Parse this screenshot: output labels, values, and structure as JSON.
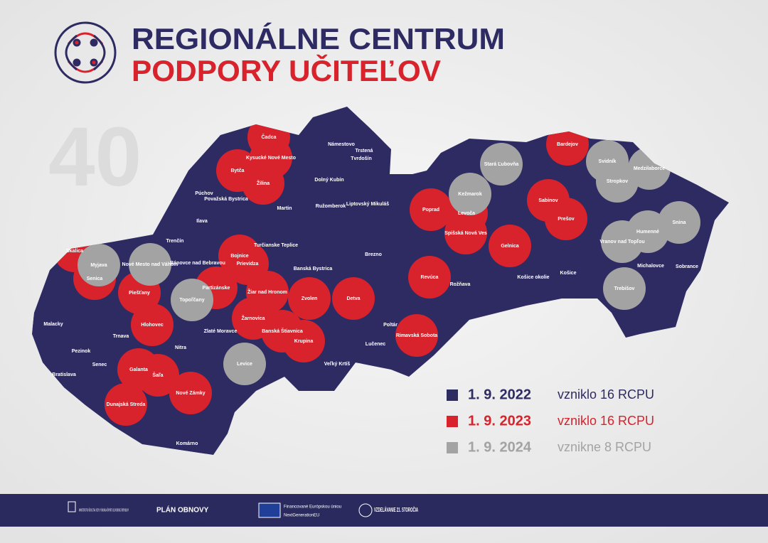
{
  "header": {
    "title_line1": "REGIONÁLNE CENTRUM",
    "title_line2": "PODPORY UČITEĽOV"
  },
  "count": "40",
  "legend": [
    {
      "date": "1. 9. 2022",
      "text": "vzniklo 16 RCPU",
      "color": "#2e2b63",
      "districts": [
        "Námestovo",
        "Trstená",
        "Tvrdošín",
        "Dolný Kubín",
        "Ružomberok",
        "Liptovský Mikuláš",
        "Martin",
        "Turčianske Teplice",
        "Banská Bystrica",
        "Brezno",
        "Púchov",
        "Považská Bystrica",
        "Ilava",
        "Trenčín",
        "Bánovce nad Bebravou",
        "Malacky",
        "Pezinok",
        "Senec",
        "Bratislava",
        "Trnava",
        "Nitra",
        "Zlaté Moravce",
        "Komárno",
        "Poltár",
        "Lučenec",
        "Veľký Krtíš",
        "Rožňava",
        "Košice okolie",
        "Košice",
        "Michalovce",
        "Sobrance"
      ]
    },
    {
      "date": "1. 9. 2023",
      "text": "vzniklo 16 RCPU",
      "color": "#d8222c",
      "districts": [
        "Čadca",
        "Kysucké Nové Mesto",
        "Bytča",
        "Žilina",
        "Skalica",
        "Senica",
        "Prievidza",
        "Bojnice",
        "Partizánske",
        "Žiar nad Hronom",
        "Žarnovica",
        "Zvolen",
        "Detva",
        "Banská Štiavnica",
        "Krupina",
        "Piešťany",
        "Hlohovec",
        "Galanta",
        "Šaľa",
        "Nové Zámky",
        "Dunajská Streda",
        "Revúca",
        "Rimavská Sobota",
        "Poprad",
        "Levoča",
        "Spišská Nová Ves",
        "Gelnica",
        "Sabinov",
        "Prešov",
        "Bardejov"
      ]
    },
    {
      "date": "1. 9. 2024",
      "text": "vznikne 8 RCPU",
      "color": "#a3a3a3",
      "districts": [
        "Stará Ľubovňa",
        "Kežmarok",
        "Svidník",
        "Medzilaborce",
        "Stropkov",
        "Snina",
        "Humenné",
        "Vranov nad Topľou",
        "Trebišov",
        "Myjava",
        "Nové Mesto nad Váhom",
        "Topoľčany",
        "Levice"
      ]
    }
  ],
  "footer": {
    "ministry": "MINISTERSTVO ŠKOLSTVA, VEDY, VÝSKUMU A ŠPORTU SLOVENSKEJ REPUBLIKY",
    "plan": "PLÁN OBNOVY",
    "eu_line1": "Financované Európskou úniou",
    "eu_line2": "NextGenerationEU",
    "edu": "VZDELÁVANIE 21. STOROČIA"
  }
}
